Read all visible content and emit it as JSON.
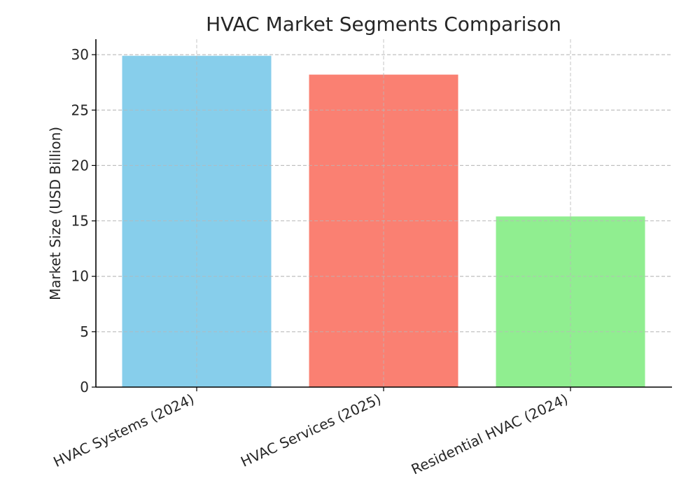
{
  "chart_data": {
    "type": "bar",
    "title": "HVAC Market Segments Comparison",
    "xlabel": "",
    "ylabel": "Market Size (USD Billion)",
    "categories": [
      "HVAC Systems (2024)",
      "HVAC Services (2025)",
      "Residential HVAC (2024)"
    ],
    "values": [
      29.9,
      28.2,
      15.4
    ],
    "colors": [
      "#87ceeb",
      "#fa8072",
      "#90ee90"
    ],
    "ylim": [
      0,
      31
    ],
    "yticks": [
      0,
      5,
      10,
      15,
      20,
      25,
      30
    ],
    "grid": true,
    "legend": null
  }
}
